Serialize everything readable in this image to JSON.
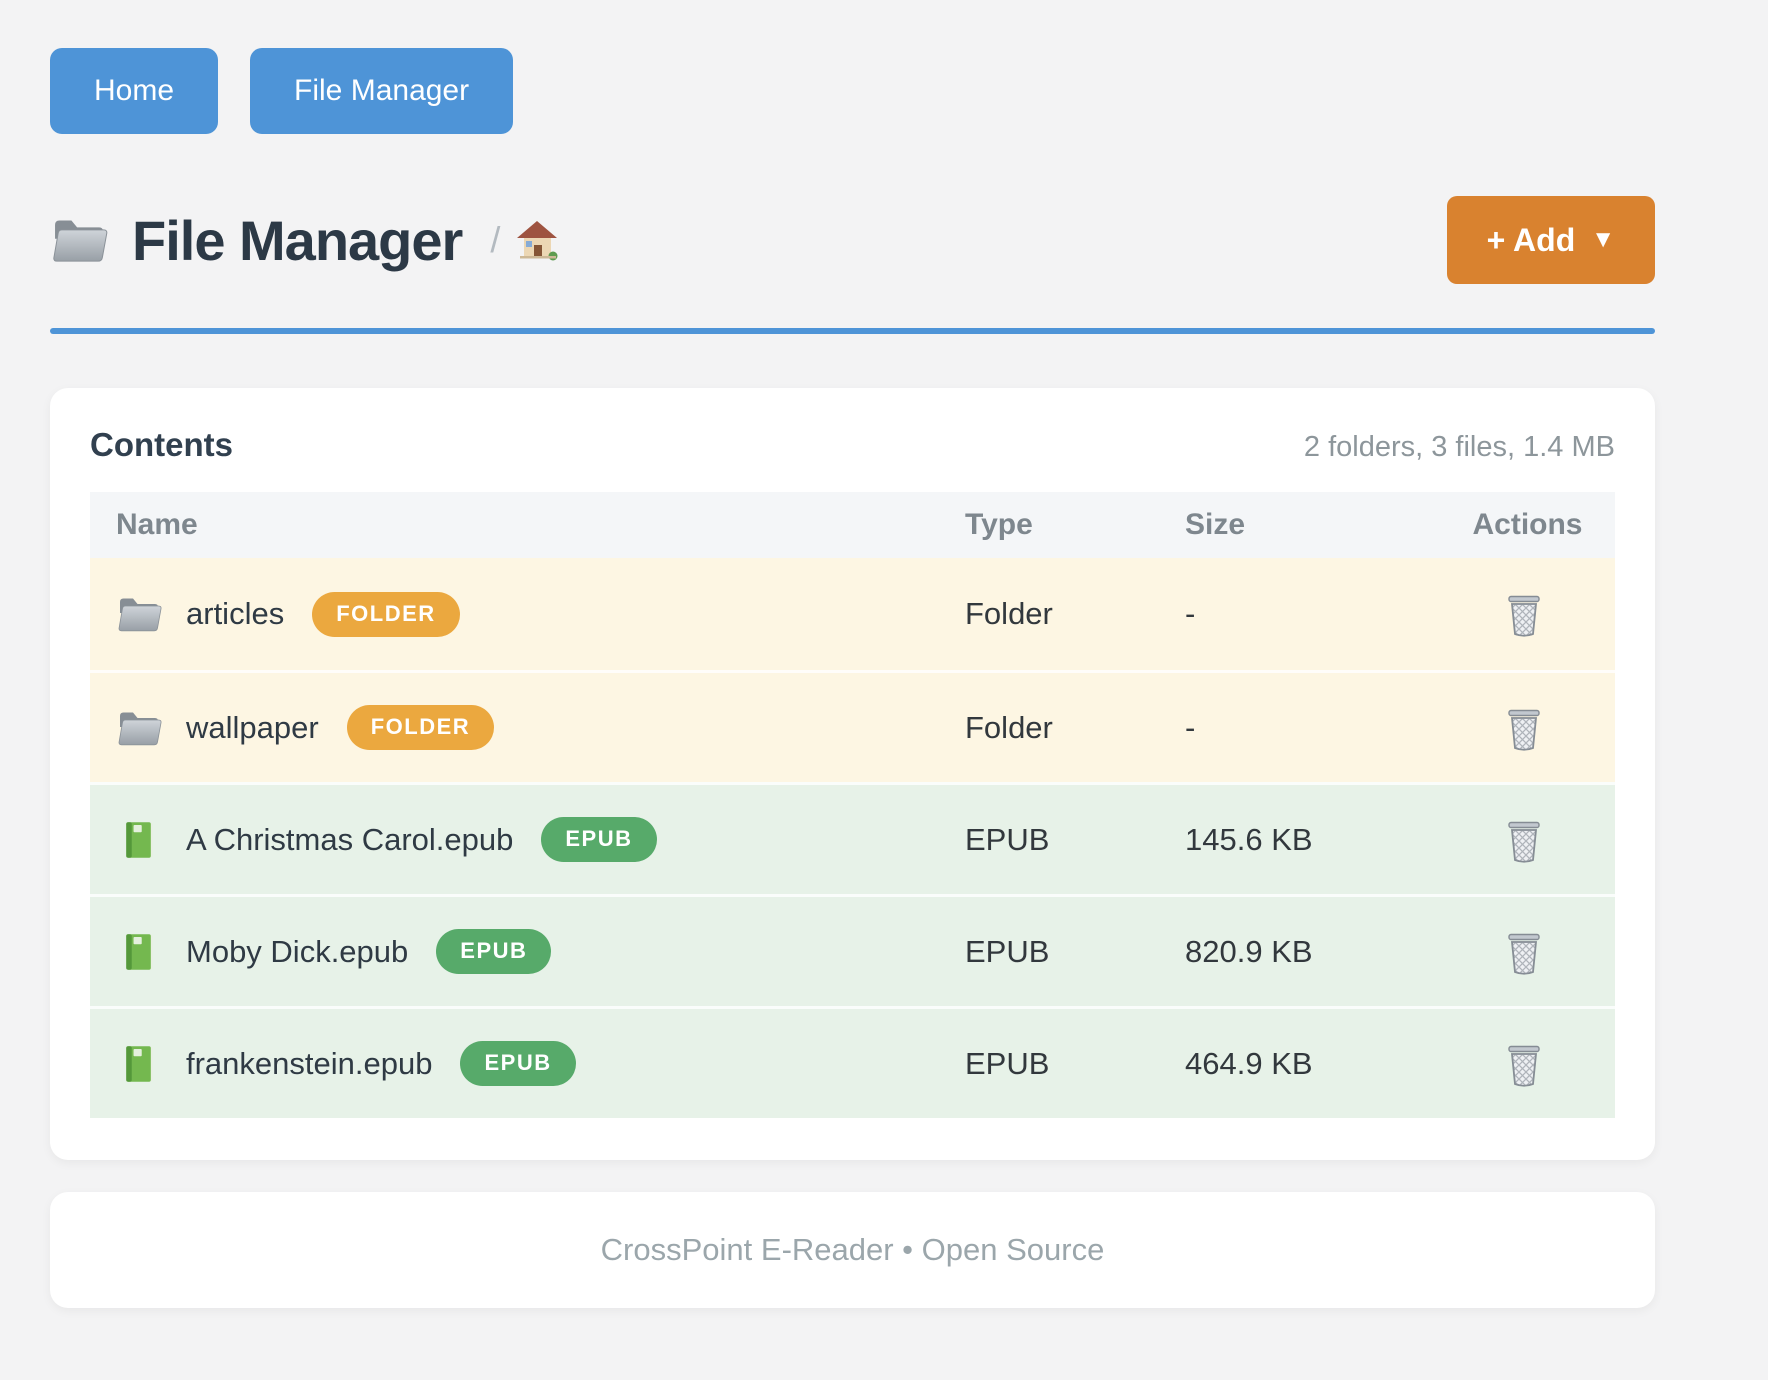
{
  "nav": {
    "home_label": "Home",
    "file_manager_label": "File Manager"
  },
  "header": {
    "title": "File Manager",
    "path_separator": "/",
    "add_button_label": "+ Add",
    "add_button_caret": "▼"
  },
  "contents": {
    "heading": "Contents",
    "summary": "2 folders, 3 files, 1.4 MB",
    "columns": {
      "name": "Name",
      "type": "Type",
      "size": "Size",
      "actions": "Actions"
    },
    "rows": [
      {
        "kind": "folder",
        "name": "articles",
        "badge": "FOLDER",
        "type": "Folder",
        "size": "-"
      },
      {
        "kind": "folder",
        "name": "wallpaper",
        "badge": "FOLDER",
        "type": "Folder",
        "size": "-"
      },
      {
        "kind": "epub",
        "name": "A Christmas Carol.epub",
        "badge": "EPUB",
        "type": "EPUB",
        "size": "145.6 KB"
      },
      {
        "kind": "epub",
        "name": "Moby Dick.epub",
        "badge": "EPUB",
        "type": "EPUB",
        "size": "820.9 KB"
      },
      {
        "kind": "epub",
        "name": "frankenstein.epub",
        "badge": "EPUB",
        "type": "EPUB",
        "size": "464.9 KB"
      }
    ]
  },
  "footer": {
    "text": "CrossPoint E-Reader • Open Source"
  },
  "colors": {
    "primary_blue": "#4e94d7",
    "accent_orange": "#d9822f",
    "folder_badge": "#eba83f",
    "epub_badge": "#57aa6a",
    "folder_row_bg": "#fdf6e3",
    "epub_row_bg": "#e7f2e8"
  }
}
